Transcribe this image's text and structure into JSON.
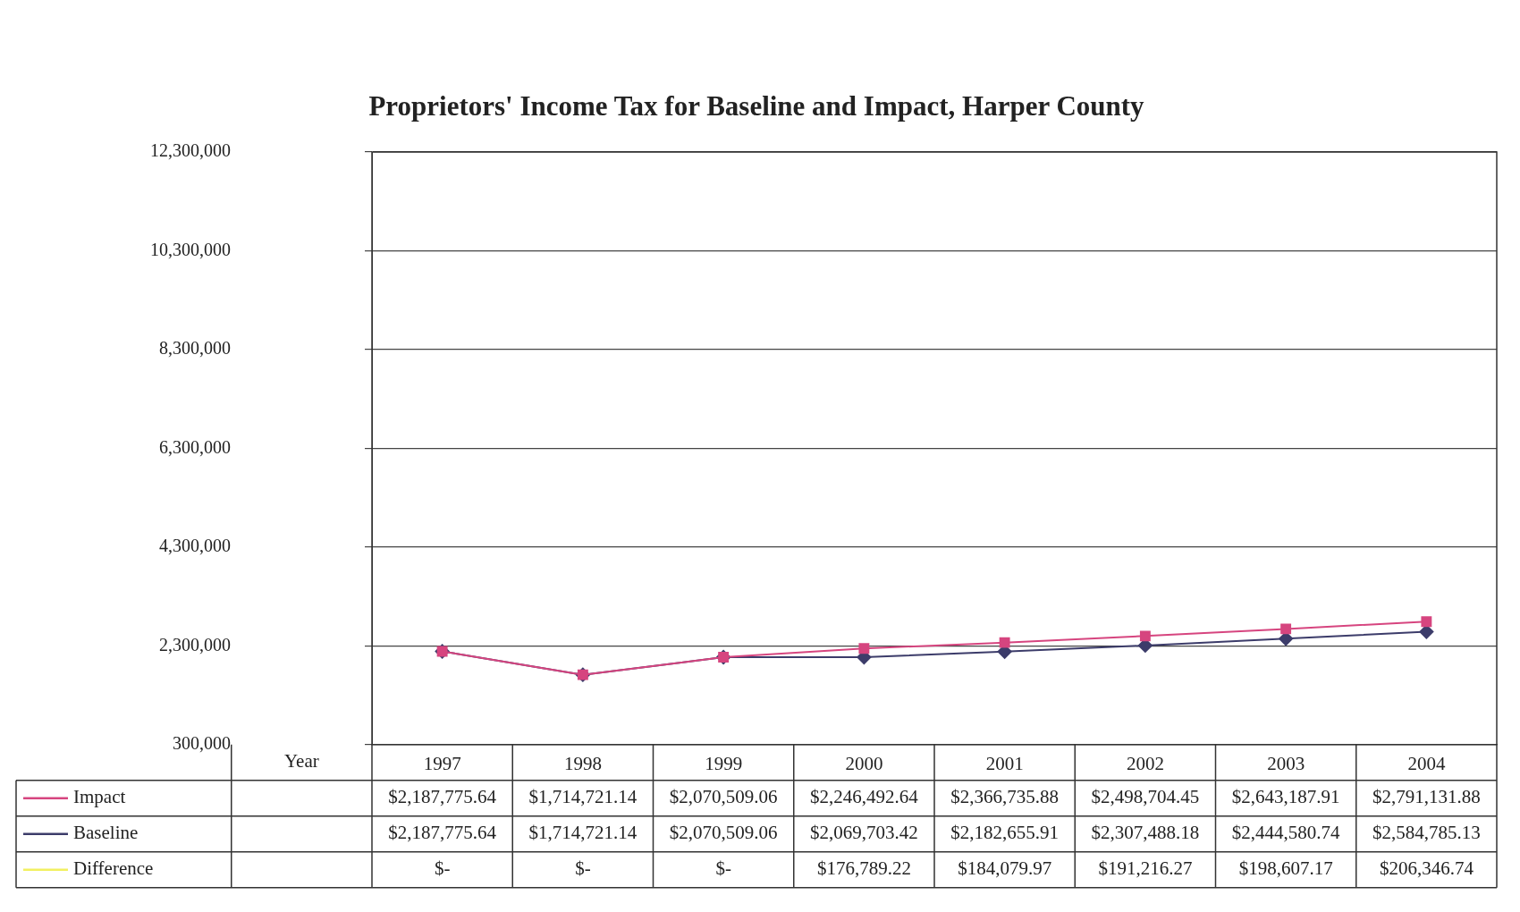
{
  "chart_data": {
    "type": "line",
    "title": "Proprietors' Income Tax for Baseline and Impact, Harper County",
    "xlabel": "Year",
    "categories": [
      "1997",
      "1998",
      "1999",
      "2000",
      "2001",
      "2002",
      "2003",
      "2004"
    ],
    "series": [
      {
        "name": "Impact",
        "color": "#d6457f",
        "marker": "square",
        "values": [
          2187775.64,
          1714721.14,
          2070509.06,
          2246492.64,
          2366735.88,
          2498704.45,
          2643187.91,
          2791131.88
        ],
        "value_labels": [
          "$2,187,775.64",
          "$1,714,721.14",
          "$2,070,509.06",
          "$2,246,492.64",
          "$2,366,735.88",
          "$2,498,704.45",
          "$2,643,187.91",
          "$2,791,131.88"
        ]
      },
      {
        "name": "Baseline",
        "color": "#3c3c6a",
        "marker": "diamond",
        "values": [
          2187775.64,
          1714721.14,
          2070509.06,
          2069703.42,
          2182655.91,
          2307488.18,
          2444580.74,
          2584785.13
        ],
        "value_labels": [
          "$2,187,775.64",
          "$1,714,721.14",
          "$2,070,509.06",
          "$2,069,703.42",
          "$2,182,655.91",
          "$2,307,488.18",
          "$2,444,580.74",
          "$2,584,785.13"
        ]
      },
      {
        "name": "Difference",
        "color": "#f2f060",
        "values": [
          null,
          null,
          null,
          null,
          null,
          null,
          null,
          null
        ],
        "value_labels": [
          "$-",
          "$-",
          "$-",
          "$176,789.22",
          "$184,079.97",
          "$191,216.27",
          "$198,607.17",
          "$206,346.74"
        ]
      }
    ],
    "ylim": [
      300000,
      12300000
    ],
    "yticks": [
      {
        "value": 300000,
        "label": "300,000"
      },
      {
        "value": 2300000,
        "label": "2,300,000"
      },
      {
        "value": 4300000,
        "label": "4,300,000"
      },
      {
        "value": 6300000,
        "label": "6,300,000"
      },
      {
        "value": 8300000,
        "label": "8,300,000"
      },
      {
        "value": 10300000,
        "label": "10,300,000"
      },
      {
        "value": 12300000,
        "label": "12,300,000"
      }
    ],
    "grid": "y",
    "legend": "bottom left"
  }
}
